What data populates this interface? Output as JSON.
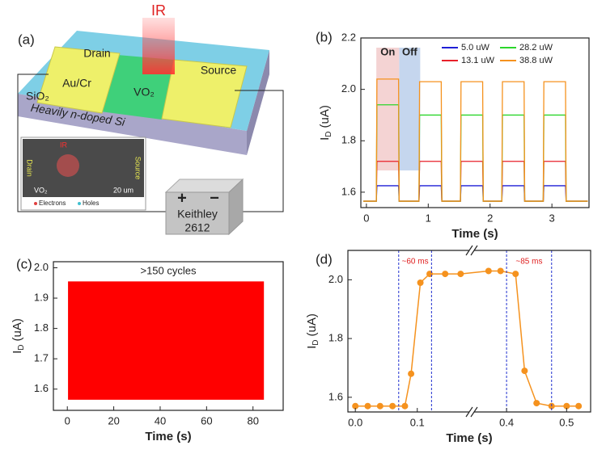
{
  "diagram": {
    "panel": "(a)",
    "ir": "IR",
    "drain": "Drain",
    "aucr": "Au/Cr",
    "vo2": "VO₂",
    "source": "Source",
    "sio2": "SiO₂",
    "substrate": "Heavily n-doped Si",
    "inset": {
      "drain": "Drain",
      "source": "Source",
      "ir": "IR",
      "vo2": "VO₂",
      "scale": "20 um",
      "electrons": "Electrons",
      "holes": "Holes"
    },
    "plus": "+",
    "minus": "−",
    "instrument": "Keithley",
    "model": "2612"
  },
  "chart_data": [
    {
      "panel": "(b)",
      "type": "line",
      "x": [
        -0.05,
        0.16,
        0.17,
        0.52,
        0.53,
        0.85,
        0.86,
        1.21,
        1.22,
        1.52,
        1.53,
        1.88,
        1.89,
        2.19,
        2.2,
        2.55,
        2.56,
        2.86,
        2.87,
        3.22,
        3.23,
        3.58
      ],
      "series": [
        {
          "name": "5.0 uW",
          "color": "#1f1fd6",
          "values": [
            1.565,
            1.565,
            1.625,
            1.625,
            1.565,
            1.565,
            1.625,
            1.625,
            1.565,
            1.565,
            1.625,
            1.625,
            1.565,
            1.565,
            1.625,
            1.625,
            1.565,
            1.565,
            1.625,
            1.625,
            1.565,
            1.565
          ]
        },
        {
          "name": "13.1 uW",
          "color": "#e8202a",
          "values": [
            1.565,
            1.565,
            1.72,
            1.72,
            1.565,
            1.565,
            1.72,
            1.72,
            1.565,
            1.565,
            1.72,
            1.72,
            1.565,
            1.565,
            1.72,
            1.72,
            1.565,
            1.565,
            1.72,
            1.72,
            1.565,
            1.565
          ]
        },
        {
          "name": "28.2 uW",
          "color": "#2bd62b",
          "values": [
            1.565,
            1.565,
            1.94,
            1.94,
            1.565,
            1.565,
            1.9,
            1.9,
            1.565,
            1.565,
            1.9,
            1.9,
            1.565,
            1.565,
            1.9,
            1.9,
            1.565,
            1.565,
            1.9,
            1.9,
            1.565,
            1.565
          ]
        },
        {
          "name": "38.8 uW",
          "color": "#f5921e",
          "values": [
            1.565,
            1.565,
            2.04,
            2.04,
            1.565,
            1.565,
            2.03,
            2.03,
            1.565,
            1.565,
            2.03,
            2.03,
            1.565,
            1.565,
            2.03,
            2.03,
            1.565,
            1.565,
            2.03,
            2.03,
            1.565,
            1.565
          ]
        }
      ],
      "xlim": [
        -0.09,
        3.6
      ],
      "ylim": [
        1.54,
        2.2
      ],
      "xticks": [
        0,
        1,
        2,
        3
      ],
      "yticks": [
        1.6,
        1.8,
        {
          "value": 2,
          "label": "2.0"
        },
        2.2
      ],
      "xlabel": "Time (s)",
      "ylabel": {
        "main": "I",
        "sub": "D",
        "unit": "(uA)"
      },
      "spans": [
        {
          "label": "On",
          "x": [
            0.16,
            0.53
          ],
          "color": "#f4d3d3"
        },
        {
          "label": "Off",
          "x": [
            0.53,
            0.87
          ],
          "color": "#c5d6ee"
        }
      ]
    },
    {
      "panel": "(c)",
      "type": "range",
      "x": [
        0.3,
        84.7
      ],
      "low": [
        1.565,
        1.565
      ],
      "high": [
        1.955,
        1.955
      ],
      "color": "#ff0000",
      "xlim": [
        -6,
        93
      ],
      "ylim": [
        1.53,
        2.02
      ],
      "xticks": [
        0,
        20,
        40,
        60,
        80
      ],
      "yticks": [
        1.6,
        1.7,
        1.8,
        1.9,
        {
          "value": 2,
          "label": "2.0"
        }
      ],
      "xlabel": "Time (s)",
      "ylabel": {
        "main": "I",
        "sub": "D",
        "unit": "(uA)"
      },
      "annotation": ">150 cycles"
    },
    {
      "panel": "(d)",
      "type": "line",
      "x": [
        0,
        0.02,
        0.04,
        0.06,
        0.08,
        0.09,
        0.105,
        0.12,
        0.145,
        0.17,
        0.37,
        0.39,
        0.415,
        0.43,
        0.45,
        0.475,
        0.5,
        0.52
      ],
      "values": [
        1.57,
        1.57,
        1.57,
        1.57,
        1.57,
        1.68,
        1.99,
        2.02,
        2.02,
        2.02,
        2.03,
        2.03,
        2.02,
        1.69,
        1.58,
        1.57,
        1.57,
        1.57
      ],
      "color": "#f5921e",
      "markers": true,
      "xlim": [
        [
          -0.012,
          0.18
        ],
        [
          0.35,
          0.54
        ]
      ],
      "ylim": [
        1.55,
        2.1
      ],
      "xticks": [
        {
          "value": 0,
          "label": "0.0"
        },
        0.1,
        0.4,
        0.5
      ],
      "yticks": [
        1.6,
        1.8,
        {
          "value": 2,
          "label": "2.0"
        }
      ],
      "xlabel": "Time (s)",
      "ylabel": {
        "main": "I",
        "sub": "D",
        "unit": "(uA)"
      },
      "vlines": [
        0.07,
        0.123,
        0.4,
        0.475
      ],
      "annotations": [
        "~60 ms",
        "~85 ms"
      ]
    }
  ]
}
